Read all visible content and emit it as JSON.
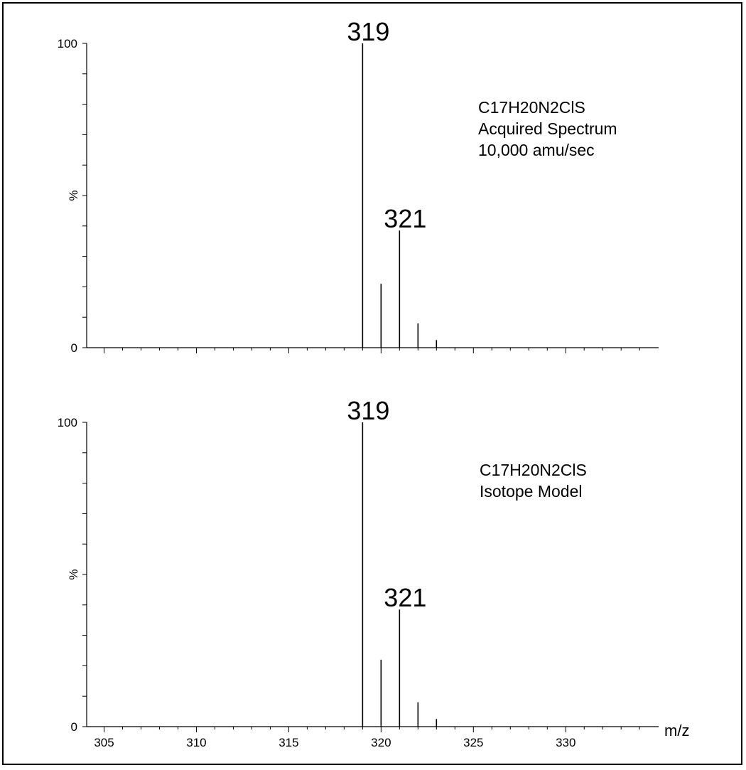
{
  "chart_data": [
    {
      "type": "bar",
      "subtype": "mass-spectrum",
      "annotation_lines": [
        "C17H20N2ClS",
        "Acquired Spectrum",
        "10,000 amu/sec"
      ],
      "ylabel": "%",
      "y_ticks": [
        "0",
        "100"
      ],
      "ylim": [
        0,
        100
      ],
      "xlim": [
        303,
        334
      ],
      "peaks": [
        {
          "mz": 319,
          "intensity": 100,
          "label": "319"
        },
        {
          "mz": 320,
          "intensity": 21,
          "label": ""
        },
        {
          "mz": 321,
          "intensity": 38.5,
          "label": "321"
        },
        {
          "mz": 322,
          "intensity": 8,
          "label": ""
        },
        {
          "mz": 323,
          "intensity": 2.5,
          "label": ""
        }
      ],
      "colors": {
        "line": "#000000"
      }
    },
    {
      "type": "bar",
      "subtype": "mass-spectrum",
      "annotation_lines": [
        "C17H20N2ClS",
        "Isotope Model"
      ],
      "ylabel": "%",
      "y_ticks": [
        "0",
        "100"
      ],
      "ylim": [
        0,
        100
      ],
      "xlim": [
        303,
        334
      ],
      "xlabel": "m/z",
      "x_ticks": [
        "305",
        "310",
        "315",
        "320",
        "325",
        "330"
      ],
      "peaks": [
        {
          "mz": 319,
          "intensity": 100,
          "label": "319"
        },
        {
          "mz": 320,
          "intensity": 22,
          "label": ""
        },
        {
          "mz": 321,
          "intensity": 38.5,
          "label": "321"
        },
        {
          "mz": 322,
          "intensity": 8,
          "label": ""
        },
        {
          "mz": 323,
          "intensity": 2.5,
          "label": ""
        }
      ],
      "colors": {
        "line": "#000000"
      }
    }
  ]
}
